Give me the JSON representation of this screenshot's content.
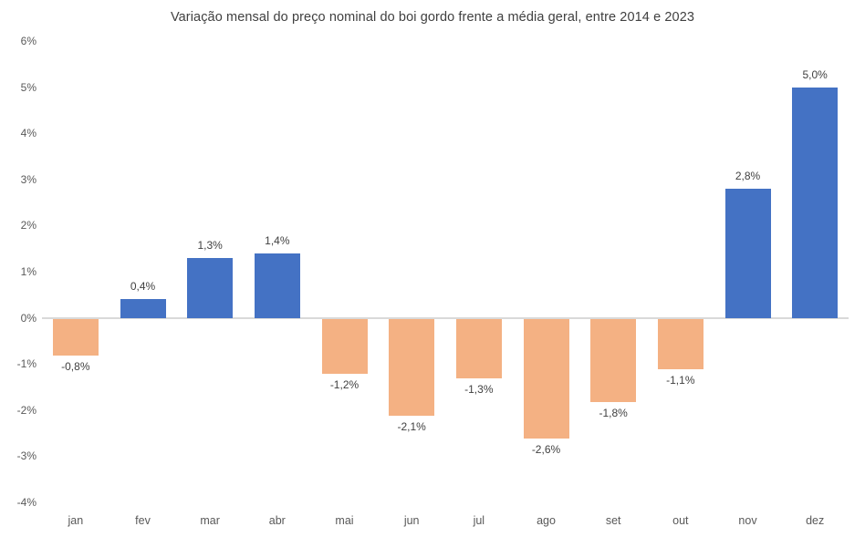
{
  "chart_data": {
    "type": "bar",
    "title": "Variação mensal do preço nominal do boi gordo frente a média geral, entre 2014 e 2023",
    "categories": [
      "jan",
      "fev",
      "mar",
      "abr",
      "mai",
      "jun",
      "jul",
      "ago",
      "set",
      "out",
      "nov",
      "dez"
    ],
    "values": [
      -0.8,
      0.4,
      1.3,
      1.4,
      -1.2,
      -2.1,
      -1.3,
      -2.6,
      -1.8,
      -1.1,
      2.8,
      5.0
    ],
    "value_labels": [
      "-0,8%",
      "0,4%",
      "1,3%",
      "1,4%",
      "-1,2%",
      "-2,1%",
      "-1,3%",
      "-2,6%",
      "-1,8%",
      "-1,1%",
      "2,8%",
      "5,0%"
    ],
    "ytick_labels": [
      "6%",
      "5%",
      "4%",
      "3%",
      "2%",
      "1%",
      "0%",
      "-1%",
      "-2%",
      "-3%",
      "-4%"
    ],
    "ytick_values": [
      6,
      5,
      4,
      3,
      2,
      1,
      0,
      -1,
      -2,
      -3,
      -4
    ],
    "ylim": [
      -4,
      6
    ],
    "xlabel": "",
    "ylabel": "",
    "grid": false,
    "legend": "none",
    "colors": {
      "positive_bar": "#4472C4",
      "negative_bar": "#F4B183",
      "axis_line": "#D9D9D9",
      "title_text": "#404040",
      "tick_text": "#595959",
      "value_label_text": "#404040",
      "background": "#FFFFFF"
    }
  }
}
